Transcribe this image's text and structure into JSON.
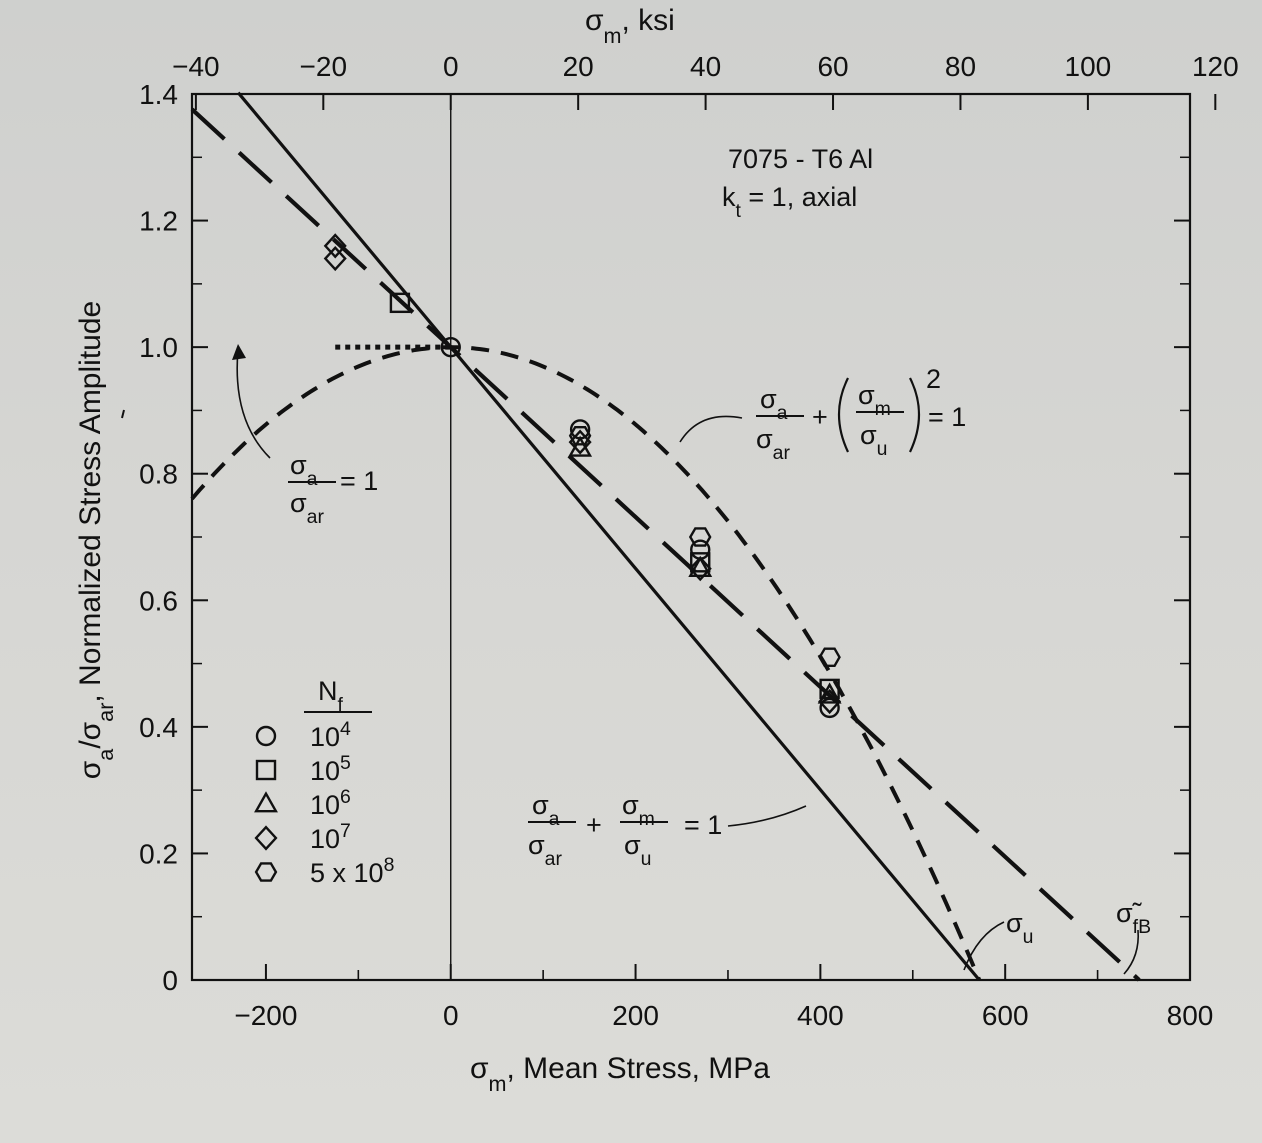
{
  "chart_data": {
    "type": "scatter",
    "title": "",
    "material_label": "7075 - T6 Al",
    "condition_label": "k_t = 1, axial",
    "xlabel_bottom": "σm, Mean Stress, MPa",
    "xlabel_top": "σm, ksi",
    "ylabel": "σa/σar, Normalized Stress Amplitude",
    "xlim": [
      -280,
      800
    ],
    "ylim": [
      0,
      1.4
    ],
    "x_ticks": [
      "-200",
      "0",
      "200",
      "400",
      "600",
      "800"
    ],
    "x_ticks_top": [
      "-40",
      "-20",
      "0",
      "20",
      "40",
      "60",
      "80",
      "100",
      "120"
    ],
    "y_ticks": [
      "0",
      "0.2",
      "0.4",
      "0.6",
      "0.8",
      "1.0",
      "1.2",
      "1.4"
    ],
    "sigma_u": 572,
    "sigma_fB": 745,
    "legend_title": "N_f",
    "legend": [
      {
        "marker": "circle",
        "label": "10^4"
      },
      {
        "marker": "square",
        "label": "10^5"
      },
      {
        "marker": "triangle",
        "label": "10^6"
      },
      {
        "marker": "diamond",
        "label": "10^7"
      },
      {
        "marker": "hexagon",
        "label": "5 x 10^8"
      }
    ],
    "series": [
      {
        "name": "10^4",
        "marker": "circle",
        "points": [
          [
            0,
            1.0
          ],
          [
            140,
            0.87
          ],
          [
            270,
            0.68
          ],
          [
            410,
            0.43
          ]
        ]
      },
      {
        "name": "10^5",
        "marker": "square",
        "points": [
          [
            -55,
            1.07
          ],
          [
            270,
            0.66
          ],
          [
            410,
            0.46
          ]
        ]
      },
      {
        "name": "10^6",
        "marker": "triangle",
        "points": [
          [
            140,
            0.84
          ],
          [
            270,
            0.65
          ],
          [
            410,
            0.45
          ]
        ]
      },
      {
        "name": "10^7",
        "marker": "diamond",
        "points": [
          [
            -125,
            1.16
          ],
          [
            -125,
            1.14
          ],
          [
            140,
            0.85
          ],
          [
            270,
            0.65
          ],
          [
            410,
            0.44
          ]
        ]
      },
      {
        "name": "5 x 10^8",
        "marker": "hexagon",
        "points": [
          [
            140,
            0.86
          ],
          [
            270,
            0.7
          ],
          [
            410,
            0.51
          ]
        ]
      }
    ],
    "curves": [
      {
        "name": "σa/σar = 1",
        "style": "dotted"
      },
      {
        "name": "σa/σar + (σm/σu)^2 = 1",
        "style": "short-dash"
      },
      {
        "name": "σa/σar + σm/σu = 1",
        "style": "solid"
      },
      {
        "name": "σ̃fB",
        "style": "long-dash"
      }
    ],
    "annotations": {
      "su_label": "σu",
      "sfb_label": "σ̃fB"
    }
  }
}
